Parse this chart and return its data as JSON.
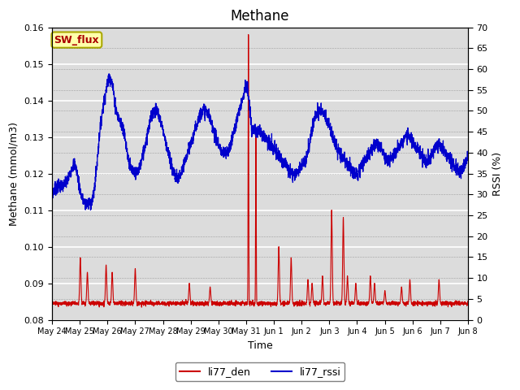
{
  "title": "Methane",
  "ylabel_left": "Methane (mmol/m3)",
  "ylabel_right": "RSSI (%)",
  "xlabel": "Time",
  "ylim_left": [
    0.08,
    0.16
  ],
  "ylim_right": [
    0,
    70
  ],
  "yticks_left": [
    0.08,
    0.09,
    0.1,
    0.11,
    0.12,
    0.13,
    0.14,
    0.15,
    0.16
  ],
  "yticks_right": [
    0,
    5,
    10,
    15,
    20,
    25,
    30,
    35,
    40,
    45,
    50,
    55,
    60,
    65,
    70
  ],
  "background_color": "#dcdcdc",
  "line_den_color": "#cc0000",
  "line_rssi_color": "#0000cc",
  "legend_den": "li77_den",
  "legend_rssi": "li77_rssi",
  "sw_flux_label": "SW_flux",
  "sw_flux_bg": "#ffffaa",
  "sw_flux_border": "#aaa800",
  "sw_flux_text_color": "#aa0000",
  "title_fontsize": 12,
  "axis_fontsize": 9,
  "tick_fontsize": 8,
  "legend_fontsize": 9,
  "n_points": 3000
}
